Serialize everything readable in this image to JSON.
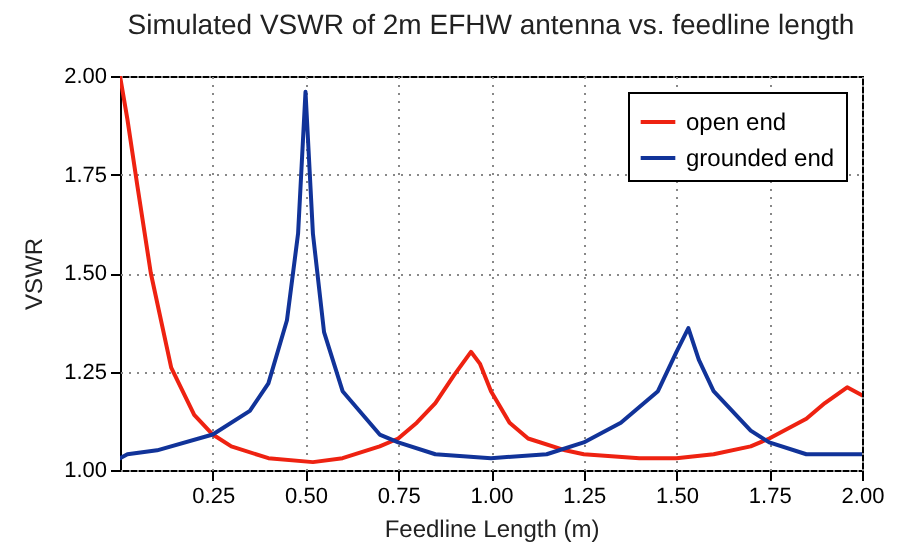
{
  "chart_data": {
    "type": "line",
    "title": "Simulated VSWR of 2m EFHW antenna vs. feedline length",
    "xlabel": "Feedline Length (m)",
    "ylabel": "VSWR",
    "xlim": [
      0,
      2
    ],
    "xticks": [
      {
        "value": 0.25,
        "label": "0.25"
      },
      {
        "value": 0.5,
        "label": "0.50"
      },
      {
        "value": 0.75,
        "label": "0.75"
      },
      {
        "value": 1,
        "label": "1.00"
      },
      {
        "value": 1.25,
        "label": "1.25"
      },
      {
        "value": 1.5,
        "label": "1.50"
      },
      {
        "value": 1.75,
        "label": "1.75"
      },
      {
        "value": 2,
        "label": "2.00"
      }
    ],
    "ylim": [
      1,
      2
    ],
    "yticks": [
      {
        "value": 1,
        "label": "1.00"
      },
      {
        "value": 1.25,
        "label": "1.25"
      },
      {
        "value": 1.5,
        "label": "1.50"
      },
      {
        "value": 1.75,
        "label": "1.75"
      },
      {
        "value": 2,
        "label": "2.00"
      }
    ],
    "grid": true,
    "legend": "top right",
    "line_style": "solid",
    "marker": "none",
    "series": [
      {
        "name": "open end",
        "color": "#ee2211",
        "x": [
          0,
          0.02,
          0.047,
          0.083,
          0.138,
          0.2,
          0.25,
          0.3,
          0.4,
          0.52,
          0.6,
          0.7,
          0.75,
          0.8,
          0.85,
          0.9,
          0.946,
          0.97,
          1.0,
          1.05,
          1.1,
          1.2,
          1.25,
          1.4,
          1.5,
          1.6,
          1.7,
          1.75,
          1.85,
          1.9,
          1.96,
          2.0
        ],
        "values": [
          2.0,
          1.89,
          1.72,
          1.5,
          1.26,
          1.14,
          1.09,
          1.06,
          1.03,
          1.02,
          1.03,
          1.06,
          1.08,
          1.12,
          1.17,
          1.24,
          1.3,
          1.27,
          1.2,
          1.12,
          1.08,
          1.05,
          1.04,
          1.03,
          1.03,
          1.04,
          1.06,
          1.08,
          1.13,
          1.17,
          1.21,
          1.19
        ]
      },
      {
        "name": "grounded end",
        "color": "#113399",
        "x": [
          0,
          0.02,
          0.1,
          0.25,
          0.35,
          0.4,
          0.45,
          0.48,
          0.5,
          0.52,
          0.55,
          0.6,
          0.7,
          0.75,
          0.85,
          1.0,
          1.15,
          1.25,
          1.35,
          1.45,
          1.5,
          1.532,
          1.56,
          1.6,
          1.7,
          1.75,
          1.85,
          2.0
        ],
        "values": [
          1.03,
          1.04,
          1.05,
          1.09,
          1.15,
          1.22,
          1.38,
          1.6,
          1.96,
          1.6,
          1.35,
          1.2,
          1.09,
          1.07,
          1.04,
          1.03,
          1.04,
          1.07,
          1.12,
          1.2,
          1.3,
          1.36,
          1.28,
          1.2,
          1.1,
          1.07,
          1.04,
          1.04
        ]
      }
    ]
  }
}
